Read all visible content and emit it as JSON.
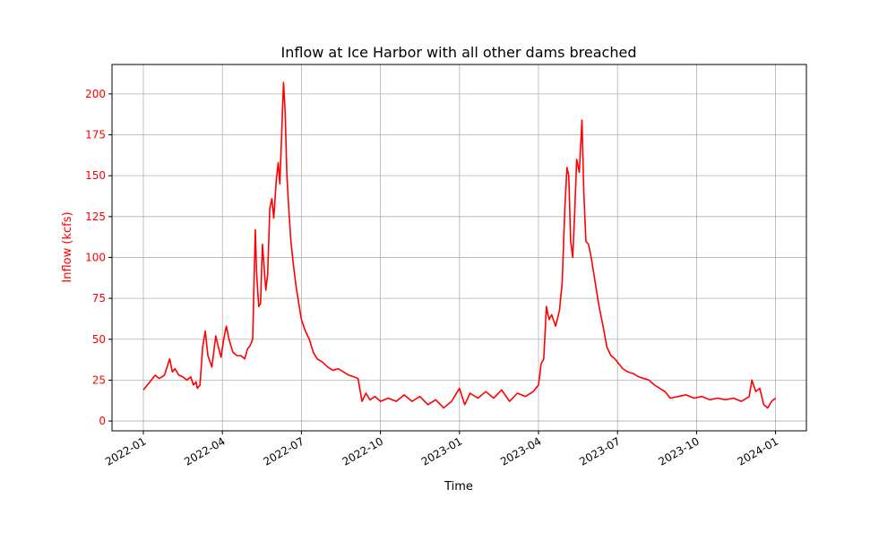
{
  "chart_data": {
    "type": "line",
    "title": "Inflow at Ice Harbor with all other dams breached",
    "x_label": "Time",
    "y_label": "Inflow (kcfs)",
    "x": [
      0,
      0.15,
      0.3,
      0.45,
      0.6,
      0.8,
      0.9,
      1.0,
      1.1,
      1.2,
      1.35,
      1.5,
      1.65,
      1.8,
      1.9,
      2.0,
      2.05,
      2.15,
      2.25,
      2.35,
      2.45,
      2.6,
      2.75,
      2.85,
      2.95,
      3.05,
      3.15,
      3.25,
      3.4,
      3.55,
      3.7,
      3.85,
      3.95,
      4.05,
      4.15,
      4.25,
      4.3,
      4.38,
      4.45,
      4.52,
      4.58,
      4.65,
      4.72,
      4.8,
      4.88,
      4.95,
      5.05,
      5.12,
      5.18,
      5.25,
      5.32,
      5.38,
      5.45,
      5.52,
      5.6,
      5.7,
      5.8,
      5.9,
      6.0,
      6.15,
      6.3,
      6.45,
      6.6,
      6.8,
      7.0,
      7.2,
      7.4,
      7.6,
      7.8,
      8.0,
      8.15,
      8.3,
      8.45,
      8.6,
      8.8,
      9.0,
      9.3,
      9.6,
      9.9,
      10.2,
      10.5,
      10.8,
      11.1,
      11.4,
      11.7,
      12.0,
      12.2,
      12.4,
      12.7,
      13.0,
      13.3,
      13.6,
      13.9,
      14.2,
      14.5,
      14.8,
      15.0,
      15.1,
      15.2,
      15.3,
      15.4,
      15.5,
      15.65,
      15.8,
      15.9,
      16.0,
      16.08,
      16.15,
      16.22,
      16.3,
      16.38,
      16.45,
      16.55,
      16.65,
      16.72,
      16.8,
      16.9,
      17.0,
      17.15,
      17.3,
      17.45,
      17.6,
      17.75,
      17.9,
      18.05,
      18.2,
      18.4,
      18.6,
      18.8,
      19.0,
      19.2,
      19.4,
      19.6,
      19.8,
      20.0,
      20.3,
      20.6,
      20.9,
      21.2,
      21.5,
      21.8,
      22.1,
      22.4,
      22.7,
      23.0,
      23.1,
      23.25,
      23.4,
      23.55,
      23.7,
      23.85,
      24.0
    ],
    "series": [
      {
        "name": "Inflow",
        "color": "#ff0000",
        "values": [
          19,
          22,
          25,
          28,
          26,
          28,
          33,
          38,
          30,
          32,
          28,
          27,
          25,
          27,
          22,
          24,
          20,
          22,
          45,
          55,
          40,
          33,
          52,
          45,
          39,
          50,
          58,
          50,
          42,
          40,
          40,
          38,
          44,
          46,
          50,
          117,
          90,
          70,
          72,
          108,
          95,
          80,
          90,
          130,
          136,
          124,
          148,
          158,
          145,
          175,
          207,
          190,
          150,
          130,
          110,
          95,
          82,
          72,
          62,
          55,
          50,
          42,
          38,
          36,
          33,
          31,
          32,
          30,
          28,
          27,
          26,
          12,
          17,
          13,
          15,
          12,
          14,
          12,
          16,
          12,
          15,
          10,
          13,
          8,
          12,
          20,
          10,
          17,
          14,
          18,
          14,
          19,
          12,
          17,
          15,
          18,
          22,
          35,
          38,
          70,
          62,
          65,
          58,
          68,
          85,
          130,
          155,
          150,
          110,
          100,
          130,
          160,
          152,
          184,
          140,
          110,
          108,
          100,
          85,
          70,
          58,
          45,
          40,
          38,
          35,
          32,
          30,
          29,
          27,
          26,
          25,
          22,
          20,
          18,
          14,
          15,
          16,
          14,
          15,
          13,
          14,
          13,
          14,
          12,
          15,
          25,
          18,
          20,
          10,
          8,
          12,
          14
        ]
      }
    ],
    "xlim": [
      -1.19,
      25.17
    ],
    "xticks": [
      {
        "value": 0,
        "label": "2022-01"
      },
      {
        "value": 3,
        "label": "2022-04"
      },
      {
        "value": 6,
        "label": "2022-07"
      },
      {
        "value": 9,
        "label": "2022-10"
      },
      {
        "value": 12,
        "label": "2023-01"
      },
      {
        "value": 15,
        "label": "2023-04"
      },
      {
        "value": 18,
        "label": "2023-07"
      },
      {
        "value": 21,
        "label": "2023-10"
      },
      {
        "value": 24,
        "label": "2024-01"
      }
    ],
    "ylim": [
      -6,
      218
    ],
    "yticks": [
      0,
      25,
      50,
      75,
      100,
      125,
      150,
      175,
      200
    ],
    "grid": true,
    "axis_color": "#ff0000"
  }
}
